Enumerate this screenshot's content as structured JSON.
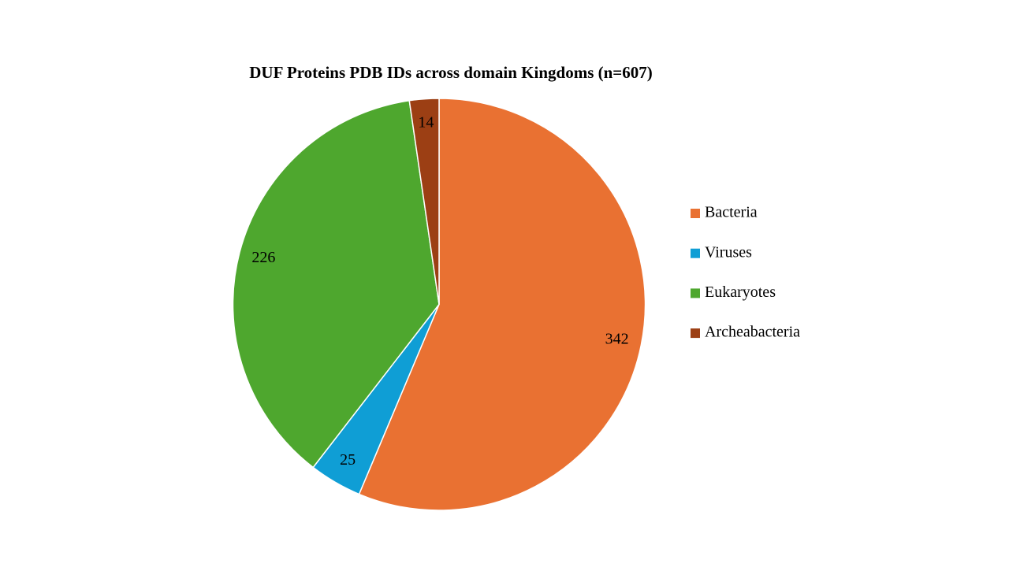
{
  "chart_data": {
    "type": "pie",
    "title": "DUF Proteins PDB IDs across domain Kingdoms (n=607)",
    "categories": [
      "Bacteria",
      "Viruses",
      "Eukaryotes",
      "Archeabacteria"
    ],
    "values": [
      342,
      25,
      226,
      14
    ],
    "colors": [
      "#e97132",
      "#0f9ed5",
      "#4ea72e",
      "#9c3f14"
    ],
    "legend": "right"
  }
}
